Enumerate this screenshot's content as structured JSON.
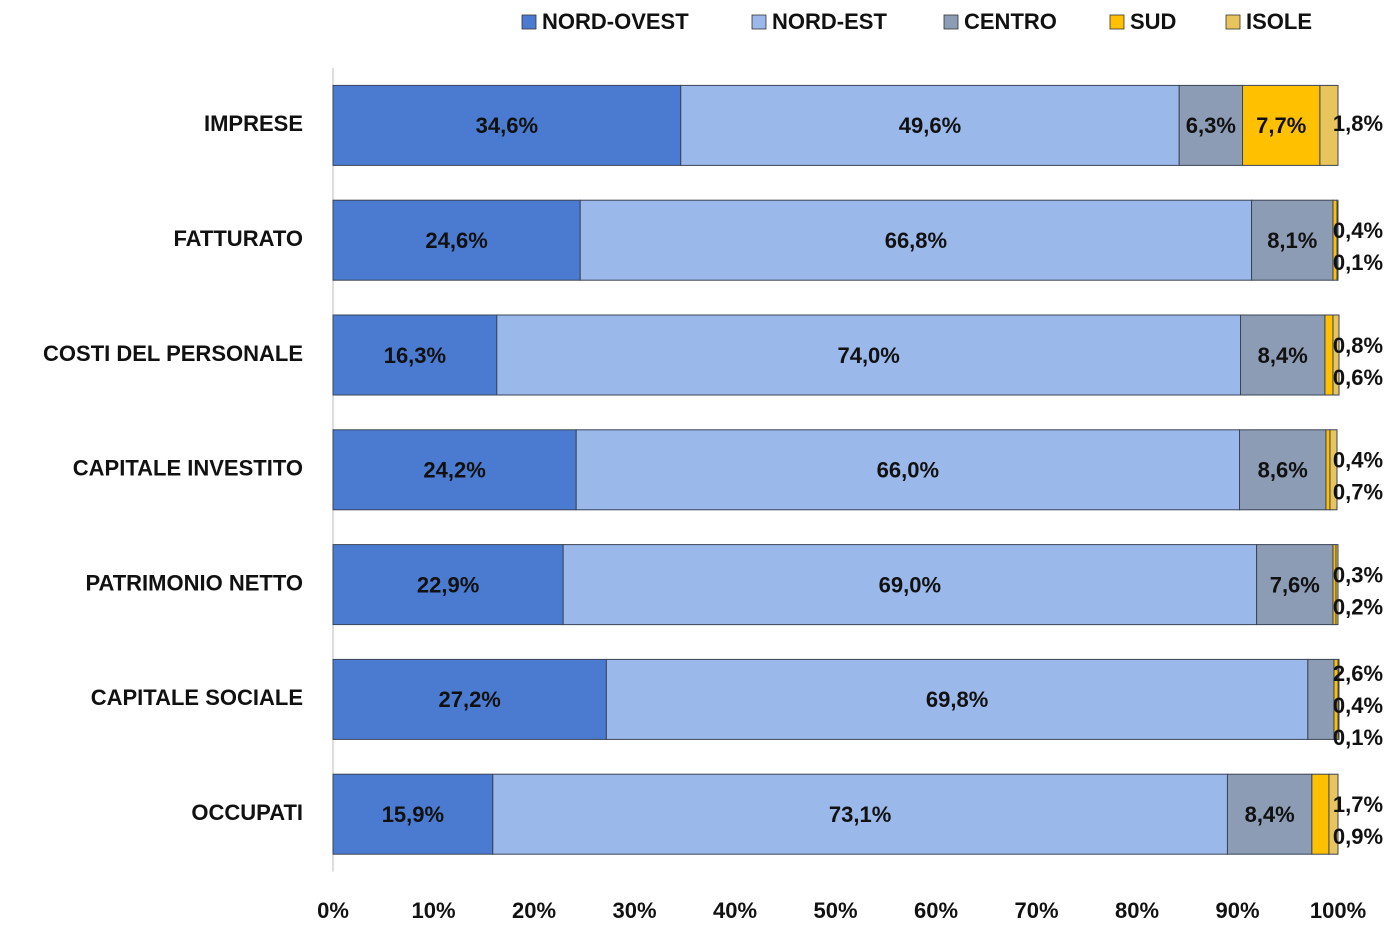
{
  "chart_data": {
    "type": "stacked-bar-horizontal",
    "categories": [
      "IMPRESE",
      "FATTURATO",
      "COSTI DEL PERSONALE",
      "CAPITALE INVESTITO",
      "PATRIMONIO NETTO",
      "CAPITALE SOCIALE",
      "OCCUPATI"
    ],
    "series": [
      {
        "name": "NORD-OVEST",
        "color": "#4a7bd0",
        "values": [
          34.6,
          24.6,
          16.3,
          24.2,
          22.9,
          27.2,
          15.9
        ],
        "value_labels": [
          "34,6%",
          "24,6%",
          "16,3%",
          "24,2%",
          "22,9%",
          "27,2%",
          "15,9%"
        ]
      },
      {
        "name": "NORD-EST",
        "color": "#9ab8ea",
        "values": [
          49.6,
          66.8,
          74.0,
          66.0,
          69.0,
          69.8,
          73.1
        ],
        "value_labels": [
          "49,6%",
          "66,8%",
          "74,0%",
          "66,0%",
          "69,0%",
          "69,8%",
          "73,1%"
        ]
      },
      {
        "name": "CENTRO",
        "color": "#8c9cb4",
        "values": [
          6.3,
          8.1,
          8.4,
          8.6,
          7.6,
          2.6,
          8.4
        ],
        "value_labels": [
          "6,3%",
          "8,1%",
          "8,4%",
          "8,6%",
          "7,6%",
          "2,6%",
          "8,4%"
        ]
      },
      {
        "name": "SUD",
        "color": "#ffc000",
        "values": [
          7.7,
          0.4,
          0.8,
          0.4,
          0.3,
          0.4,
          1.7
        ],
        "value_labels": [
          "7,7%",
          "0,4%",
          "0,8%",
          "0,4%",
          "0,3%",
          "0,4%",
          "1,7%"
        ]
      },
      {
        "name": "ISOLE",
        "color": "#e8c45c",
        "values": [
          1.8,
          0.1,
          0.6,
          0.7,
          0.2,
          0.1,
          0.9
        ],
        "value_labels": [
          "1,8%",
          "0,1%",
          "0,6%",
          "0,7%",
          "0,2%",
          "0,1%",
          "0,9%"
        ]
      }
    ],
    "xlim": [
      0,
      100
    ],
    "xticks": [
      {
        "value": 0,
        "label": "0%"
      },
      {
        "value": 10,
        "label": "10%"
      },
      {
        "value": 20,
        "label": "20%"
      },
      {
        "value": 30,
        "label": "30%"
      },
      {
        "value": 40,
        "label": "40%"
      },
      {
        "value": 50,
        "label": "50%"
      },
      {
        "value": 60,
        "label": "60%"
      },
      {
        "value": 70,
        "label": "70%"
      },
      {
        "value": 80,
        "label": "80%"
      },
      {
        "value": 90,
        "label": "90%"
      },
      {
        "value": 100,
        "label": "100%"
      }
    ],
    "legend": "top"
  }
}
